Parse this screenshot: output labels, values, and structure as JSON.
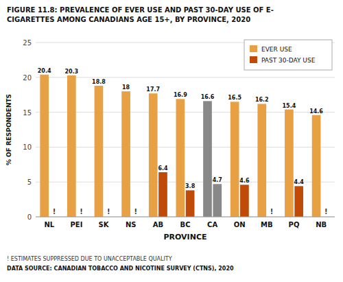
{
  "chart_data": {
    "type": "bar",
    "title": [
      "FIGURE 11.8: PREVALENCE OF EVER USE AND PAST 30-DAY USE OF E-",
      "CIGARETTES AMONG CANADIANS AGE 15+, BY PROVINCE, 2020"
    ],
    "categories": [
      "NL",
      "PEI",
      "SK",
      "NS",
      "AB",
      "BC",
      "CA",
      "ON",
      "MB",
      "PQ",
      "NB"
    ],
    "series": [
      {
        "name": "EVER USE",
        "color": "#E8A045",
        "colors": [
          "#E8A045",
          "#E8A045",
          "#E8A045",
          "#E8A045",
          "#E8A045",
          "#E8A045",
          "#888888",
          "#E8A045",
          "#E8A045",
          "#E8A045",
          "#E8A045"
        ],
        "values": [
          20.4,
          20.3,
          18.8,
          18.0,
          17.7,
          16.9,
          16.6,
          16.5,
          16.2,
          15.4,
          14.6
        ]
      },
      {
        "name": "PAST 30-DAY USE",
        "color": "#C04A08",
        "colors": [
          "#C04A08",
          "#C04A08",
          "#C04A08",
          "#C04A08",
          "#C04A08",
          "#C04A08",
          "#888888",
          "#C04A08",
          "#C04A08",
          "#C04A08",
          "#C04A08"
        ],
        "values": [
          null,
          null,
          null,
          null,
          6.4,
          3.8,
          4.7,
          4.6,
          null,
          4.4,
          null
        ],
        "value_labels": [
          "!",
          "!",
          "!",
          "!",
          "6.4",
          "3.8",
          "4.7",
          "4.6",
          "!",
          "4.4",
          "!"
        ]
      }
    ],
    "xlabel": "PROVINCE",
    "ylabel": "% OF RESPONDENTS",
    "ylim": [
      0,
      25
    ],
    "yticks": [
      0,
      5,
      10,
      15,
      20,
      25
    ],
    "grid": true,
    "legend": "upper right",
    "data_labels": true,
    "annotations": [
      "! ESTIMATES SUPPRESSED DUE TO UNACCEPTABLE QUALITY",
      "DATA SOURCE: CANADIAN TOBACCO AND NICOTINE SURVEY (CTNS), 2020"
    ]
  }
}
